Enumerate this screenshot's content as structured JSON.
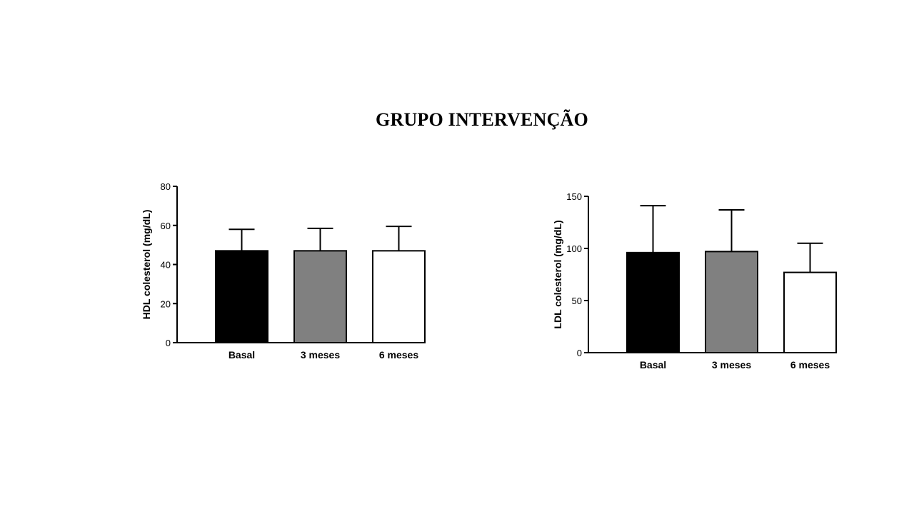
{
  "page": {
    "title": "GRUPO INTERVENÇÃO"
  },
  "chart_data": [
    {
      "type": "bar",
      "categories": [
        "Basal",
        "3 meses",
        "6 meses"
      ],
      "values": [
        47,
        47,
        47
      ],
      "error_upper": [
        58,
        58.5,
        59.5
      ],
      "bar_colors": [
        "#000000",
        "#808080",
        "#ffffff"
      ],
      "title": "",
      "xlabel": "",
      "ylabel": "HDL colesterol (mg/dL)",
      "ylim": [
        0,
        80
      ],
      "yticks": [
        0,
        20,
        40,
        60,
        80
      ],
      "grid": false
    },
    {
      "type": "bar",
      "categories": [
        "Basal",
        "3 meses",
        "6 meses"
      ],
      "values": [
        96,
        97,
        77
      ],
      "error_upper": [
        141,
        137,
        105
      ],
      "bar_colors": [
        "#000000",
        "#808080",
        "#ffffff"
      ],
      "title": "",
      "xlabel": "",
      "ylabel": "LDL colesterol (mg/dL)",
      "ylim": [
        0,
        150
      ],
      "yticks": [
        0,
        50,
        100,
        150
      ],
      "grid": false
    }
  ]
}
